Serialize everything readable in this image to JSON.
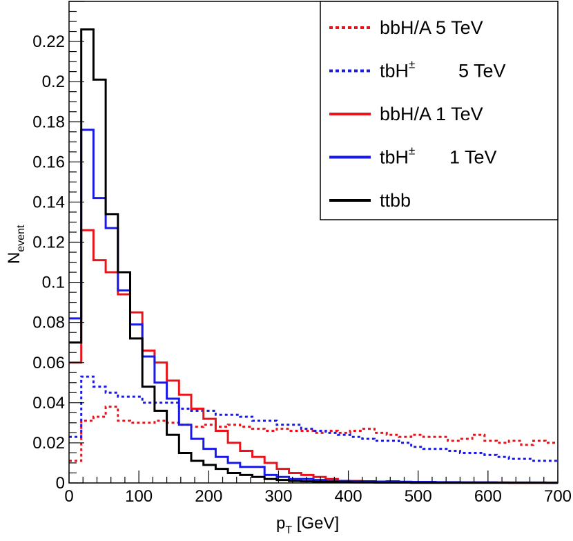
{
  "chart_data": {
    "type": "line",
    "step": true,
    "xlabel": "p_T [GeV]",
    "xlabel_main": "p",
    "xlabel_sub": "T",
    "xlabel_rest": " [GeV]",
    "ylabel": "N_event",
    "ylabel_main": "N",
    "ylabel_sub": "event",
    "xlim": [
      0,
      700
    ],
    "ylim": [
      0,
      0.24
    ],
    "bin_width": 17.5,
    "x_ticks": [
      "0",
      "100",
      "200",
      "300",
      "400",
      "500",
      "600",
      "700"
    ],
    "y_ticks": [
      "0",
      "0.02",
      "0.04",
      "0.06",
      "0.08",
      "0.1",
      "0.12",
      "0.14",
      "0.16",
      "0.18",
      "0.2",
      "0.22"
    ],
    "legend_position": "top-right",
    "grid": false,
    "series": [
      {
        "name": "bbH/A 5 TeV",
        "legend_label": "bbH/A 5 TeV",
        "legend_sup": "",
        "legend_suffix": "",
        "color": "#e8141b",
        "style": "dotted",
        "values": [
          0.011,
          0.031,
          0.033,
          0.038,
          0.031,
          0.03,
          0.03,
          0.031,
          0.03,
          0.029,
          0.028,
          0.029,
          0.028,
          0.029,
          0.028,
          0.027,
          0.026,
          0.027,
          0.026,
          0.026,
          0.025,
          0.026,
          0.025,
          0.026,
          0.027,
          0.025,
          0.024,
          0.023,
          0.024,
          0.023,
          0.023,
          0.021,
          0.022,
          0.024,
          0.021,
          0.02,
          0.021,
          0.019,
          0.021,
          0.02
        ]
      },
      {
        "name": "tbH± 5 TeV",
        "legend_label": "tbH",
        "legend_sup": "±",
        "legend_suffix": "5 TeV",
        "color": "#1a1ae6",
        "style": "dotted",
        "values": [
          0.023,
          0.053,
          0.048,
          0.045,
          0.043,
          0.043,
          0.04,
          0.04,
          0.04,
          0.037,
          0.036,
          0.036,
          0.034,
          0.034,
          0.033,
          0.031,
          0.031,
          0.029,
          0.029,
          0.027,
          0.026,
          0.025,
          0.024,
          0.023,
          0.022,
          0.021,
          0.021,
          0.02,
          0.018,
          0.017,
          0.017,
          0.016,
          0.015,
          0.015,
          0.014,
          0.013,
          0.012,
          0.012,
          0.011,
          0.011
        ]
      },
      {
        "name": "bbH/A 1 TeV",
        "legend_label": "bbH/A 1 TeV",
        "legend_sup": "",
        "legend_suffix": "",
        "color": "#e8141b",
        "style": "solid",
        "values": [
          0.06,
          0.126,
          0.111,
          0.105,
          0.094,
          0.085,
          0.066,
          0.06,
          0.051,
          0.044,
          0.037,
          0.032,
          0.026,
          0.02,
          0.016,
          0.013,
          0.01,
          0.007,
          0.005,
          0.004,
          0.003,
          0.002,
          0.001,
          0.001,
          0.0008,
          0.0006,
          0.0005,
          0.0004,
          0.0004,
          0.0003,
          0.0003,
          0.0003,
          0.0002,
          0.0002,
          0.0002,
          0.0002,
          0.0001,
          0.0001,
          0.0001,
          0.0001
        ]
      },
      {
        "name": "tbH± 1 TeV",
        "legend_label": "tbH",
        "legend_sup": "±",
        "legend_suffix": "1 TeV",
        "color": "#1a1ae6",
        "style": "solid",
        "values": [
          0.082,
          0.176,
          0.142,
          0.127,
          0.096,
          0.079,
          0.063,
          0.05,
          0.042,
          0.029,
          0.022,
          0.017,
          0.013,
          0.01,
          0.008,
          0.008,
          0.004,
          0.003,
          0.002,
          0.002,
          0.0015,
          0.001,
          0.001,
          0.0008,
          0.0008,
          0.0007,
          0.0008,
          0.0006,
          0.0005,
          0.0005,
          0.0004,
          0.0004,
          0.0003,
          0.0003,
          0.0003,
          0.0002,
          0.0002,
          0.0002,
          0.0002,
          0.0001
        ]
      },
      {
        "name": "ttbb",
        "legend_label": "ttbb",
        "legend_sup": "",
        "legend_suffix": "",
        "color": "#000000",
        "style": "solid",
        "values": [
          0.07,
          0.226,
          0.201,
          0.134,
          0.105,
          0.072,
          0.048,
          0.036,
          0.024,
          0.015,
          0.011,
          0.009,
          0.007,
          0.005,
          0.004,
          0.003,
          0.002,
          0.0015,
          0.001,
          0.0008,
          0.0006,
          0.0005,
          0.0004,
          0.0003,
          0.0003,
          0.0002,
          0.0002,
          0.0002,
          0.0001,
          0.0001,
          0.0001,
          0.0001,
          0.0001,
          0.0001,
          0.0001,
          0.0001,
          0.0001,
          0.0001,
          0.0001,
          0.0001
        ]
      }
    ]
  }
}
